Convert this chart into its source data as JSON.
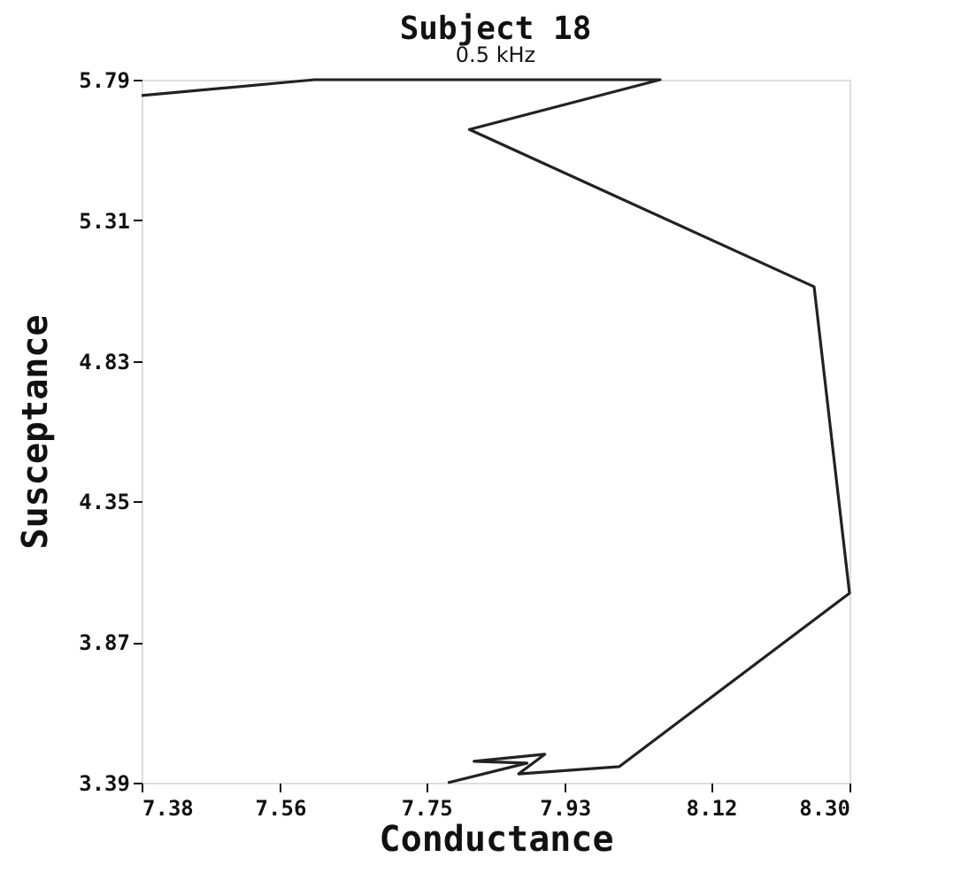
{
  "chart_data": {
    "type": "line",
    "title": "Subject 18",
    "subtitle": "0.5 kHz",
    "xlabel": "Conductance",
    "ylabel": "Susceptance",
    "x": [
      7.38,
      7.605,
      8.054,
      7.806,
      8.254,
      8.3,
      8.001,
      7.87,
      7.904,
      7.812,
      7.881,
      7.778
    ],
    "series": [
      {
        "color": "#222222",
        "values": [
          5.736,
          5.79,
          5.79,
          5.62,
          5.083,
          4.037,
          3.445,
          3.42,
          3.487,
          3.463,
          3.457,
          3.39
        ]
      }
    ],
    "xlim": [
      7.38,
      8.3
    ],
    "ylim": [
      3.39,
      5.79
    ],
    "xticks": [
      {
        "value": 7.38,
        "label": "7.38"
      },
      {
        "value": 7.56,
        "label": "7.56"
      },
      {
        "value": 7.75,
        "label": "7.75"
      },
      {
        "value": 7.93,
        "label": "7.93"
      },
      {
        "value": 8.12,
        "label": "8.12"
      },
      {
        "value": 8.3,
        "label": "8.30"
      }
    ],
    "yticks": [
      {
        "value": 3.39,
        "label": "3.39"
      },
      {
        "value": 3.87,
        "label": "3.87"
      },
      {
        "value": 4.35,
        "label": "4.35"
      },
      {
        "value": 4.83,
        "label": "4.83"
      },
      {
        "value": 5.31,
        "label": "5.31"
      },
      {
        "value": 5.79,
        "label": "5.79"
      }
    ],
    "grid": false,
    "marker": "none",
    "line_style": "solid"
  }
}
